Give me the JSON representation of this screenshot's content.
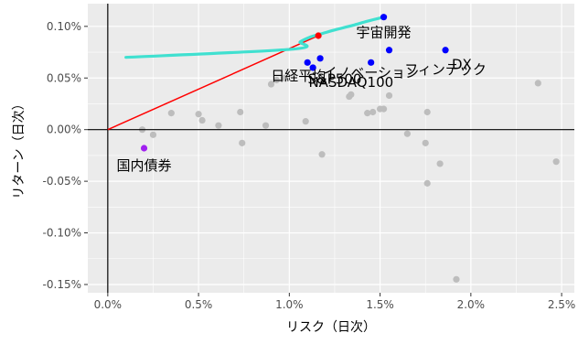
{
  "chart_data": {
    "type": "scatter",
    "xlabel": "リスク（日次）",
    "ylabel": "リターン（日次）",
    "xlim": [
      -0.0011,
      0.0257
    ],
    "ylim": [
      -0.00158,
      0.00122
    ],
    "x_ticks": [
      0.0,
      0.005,
      0.01,
      0.015,
      0.02,
      0.025
    ],
    "x_tick_labels": [
      "0.0%",
      "0.5%",
      "1.0%",
      "1.5%",
      "2.0%",
      "2.5%"
    ],
    "y_ticks": [
      -0.0015,
      -0.001,
      -0.0005,
      0.0,
      0.0005,
      0.001
    ],
    "y_tick_labels": [
      "-0.15%",
      "-0.10%",
      "-0.05%",
      "0.00%",
      "0.05%",
      "0.10%"
    ],
    "grid": true,
    "colors": {
      "panel": "#ebebeb",
      "grid": "#ffffff",
      "other_points": "#bdbdbd",
      "highlight_points": "#0000ff",
      "bond_point": "#a020f0",
      "tangency_point": "#ff0000",
      "capital_market_line": "#ff0000",
      "efficient_frontier": "#40e0d0",
      "zero_axes": "#000000"
    },
    "other_points": [
      {
        "x": 0.0019,
        "y": 0.0
      },
      {
        "x": 0.0025,
        "y": -5e-05
      },
      {
        "x": 0.0035,
        "y": 0.00016
      },
      {
        "x": 0.005,
        "y": 0.00015
      },
      {
        "x": 0.0052,
        "y": 9e-05
      },
      {
        "x": 0.0061,
        "y": 4e-05
      },
      {
        "x": 0.0073,
        "y": 0.00017
      },
      {
        "x": 0.0074,
        "y": -0.00013
      },
      {
        "x": 0.0087,
        "y": 4e-05
      },
      {
        "x": 0.009,
        "y": 0.00044
      },
      {
        "x": 0.0093,
        "y": 0.00048
      },
      {
        "x": 0.0097,
        "y": 0.0005
      },
      {
        "x": 0.0109,
        "y": 8e-05
      },
      {
        "x": 0.0118,
        "y": -0.00024
      },
      {
        "x": 0.0133,
        "y": 0.00032
      },
      {
        "x": 0.0134,
        "y": 0.00034
      },
      {
        "x": 0.0143,
        "y": 0.00016
      },
      {
        "x": 0.0146,
        "y": 0.00017
      },
      {
        "x": 0.015,
        "y": 0.0002
      },
      {
        "x": 0.0152,
        "y": 0.0002
      },
      {
        "x": 0.0155,
        "y": 0.00033
      },
      {
        "x": 0.0165,
        "y": -4e-05
      },
      {
        "x": 0.0175,
        "y": -0.00013
      },
      {
        "x": 0.0176,
        "y": 0.00017
      },
      {
        "x": 0.0176,
        "y": -0.00052
      },
      {
        "x": 0.0183,
        "y": -0.00033
      },
      {
        "x": 0.0192,
        "y": -0.00145
      },
      {
        "x": 0.0237,
        "y": 0.00045
      },
      {
        "x": 0.0247,
        "y": -0.00031
      }
    ],
    "highlight_points": [
      {
        "x": 0.0152,
        "y": 0.00109,
        "label": "宇宙開発",
        "lx": 0.0152,
        "ly": 0.00094,
        "anchor": "middle"
      },
      {
        "x": 0.011,
        "y": 0.00065,
        "label": "日経平均",
        "lx": 0.0105,
        "ly": 0.00052,
        "anchor": "middle"
      },
      {
        "x": 0.0117,
        "y": 0.00069,
        "label": "S&P500",
        "lx": 0.0125,
        "ly": 0.00049,
        "anchor": "middle"
      },
      {
        "x": 0.0113,
        "y": 0.0006,
        "label": "NASDAQ100",
        "lx": 0.0134,
        "ly": 0.00046,
        "anchor": "middle"
      },
      {
        "x": 0.0155,
        "y": 0.00077,
        "label": "DX",
        "lx": 0.0195,
        "ly": 0.00063,
        "anchor": "middle"
      },
      {
        "x": 0.0145,
        "y": 0.00065,
        "label": "イノベーション",
        "lx": 0.0145,
        "ly": 0.00055,
        "anchor": "middle"
      },
      {
        "x": 0.0186,
        "y": 0.00077,
        "label": "フィンテック",
        "lx": 0.0186,
        "ly": 0.00058,
        "anchor": "middle"
      }
    ],
    "bond_point": {
      "x": 0.002,
      "y": -0.00018,
      "label": "国内債券"
    },
    "tangency_point": {
      "x": 0.0116,
      "y": 0.00091
    },
    "capital_market_line": [
      [
        0.0,
        0.0
      ],
      [
        0.0116,
        0.00091
      ]
    ],
    "efficient_frontier": [
      [
        0.001,
        0.0007
      ],
      [
        0.0102,
        0.00078
      ],
      [
        0.0106,
        0.00085
      ],
      [
        0.0112,
        0.0009
      ],
      [
        0.0118,
        0.00093
      ],
      [
        0.0126,
        0.00097
      ],
      [
        0.0135,
        0.00101
      ],
      [
        0.0143,
        0.00105
      ],
      [
        0.0152,
        0.00109
      ]
    ]
  }
}
